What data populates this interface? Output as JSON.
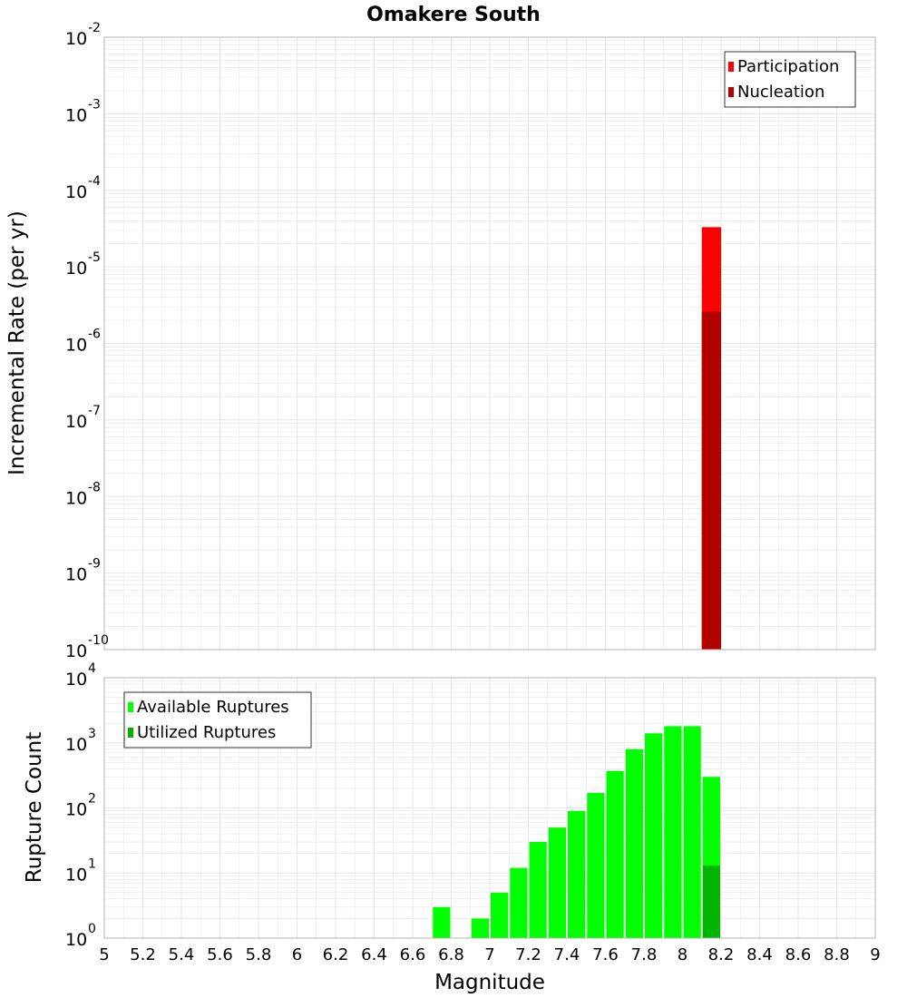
{
  "title": "Omakere South",
  "colors": {
    "participation": "#ff0000",
    "nucleation": "#b40000",
    "available": "#00ff00",
    "utilized": "#00b400",
    "grid": "#e6e6e6",
    "border": "#b4b4b4"
  },
  "chart_data": [
    {
      "type": "bar",
      "panel": "top",
      "ylabel": "Incremental Rate (per yr)",
      "xlabel": "",
      "yscale": "log",
      "ylim": [
        1e-10,
        0.01
      ],
      "xlim": [
        5,
        9
      ],
      "ytick_exponents": [
        -10,
        -9,
        -8,
        -7,
        -6,
        -5,
        -4,
        -3,
        -2
      ],
      "ytick_base": "10",
      "grid": true,
      "legend_position": "top-right",
      "bar_width": 0.1,
      "series": [
        {
          "name": "Participation",
          "color_key": "participation",
          "x": [
            8.15
          ],
          "values": [
            3.3e-05
          ]
        },
        {
          "name": "Nucleation",
          "color_key": "nucleation",
          "x": [
            8.15
          ],
          "values": [
            2.6e-06
          ]
        }
      ]
    },
    {
      "type": "bar",
      "panel": "bottom",
      "ylabel": "Rupture Count",
      "xlabel": "Magnitude",
      "yscale": "log",
      "ylim": [
        1,
        10000
      ],
      "xlim": [
        5,
        9
      ],
      "ytick_exponents": [
        0,
        1,
        2,
        3,
        4
      ],
      "ytick_base": "10",
      "xticks": [
        "5",
        "5.2",
        "5.4",
        "5.6",
        "5.8",
        "6",
        "6.2",
        "6.4",
        "6.6",
        "6.8",
        "7",
        "7.2",
        "7.4",
        "7.6",
        "7.8",
        "8",
        "8.2",
        "8.4",
        "8.6",
        "8.8",
        "9"
      ],
      "grid": true,
      "legend_position": "top-left",
      "bar_width": 0.1,
      "series": [
        {
          "name": "Available Ruptures",
          "color_key": "available",
          "x": [
            6.75,
            6.95,
            7.05,
            7.15,
            7.25,
            7.35,
            7.45,
            7.55,
            7.65,
            7.75,
            7.85,
            7.95,
            8.05,
            8.15
          ],
          "values": [
            3,
            2,
            5,
            12,
            30,
            50,
            90,
            170,
            370,
            800,
            1400,
            1800,
            1800,
            300
          ]
        },
        {
          "name": "Utilized Ruptures",
          "color_key": "utilized",
          "x": [
            8.15
          ],
          "values": [
            13
          ]
        }
      ]
    }
  ]
}
